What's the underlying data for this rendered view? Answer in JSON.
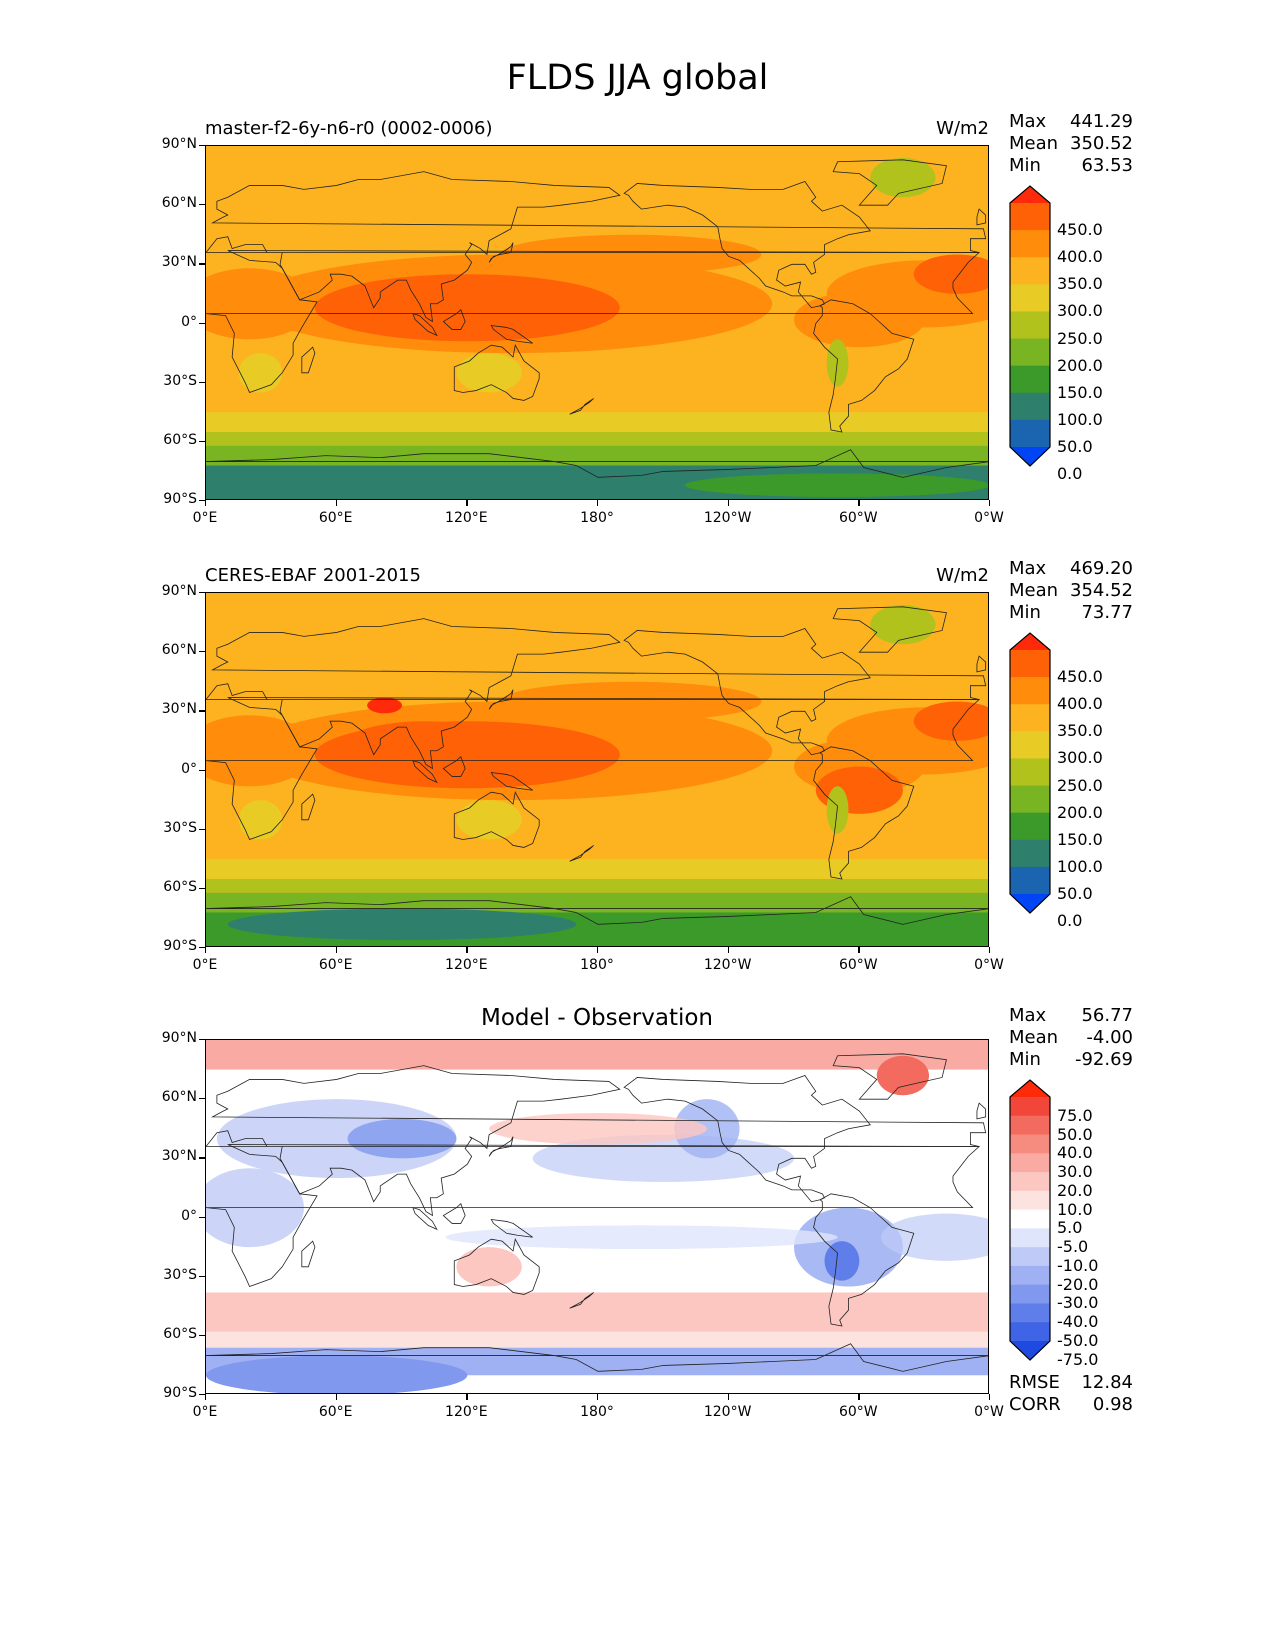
{
  "figure": {
    "title": "FLDS JJA global"
  },
  "axes": {
    "lat_ticks": [
      "90°N",
      "60°N",
      "30°N",
      "0°",
      "30°S",
      "60°S",
      "90°S"
    ],
    "lon_ticks": [
      "0°E",
      "60°E",
      "120°E",
      "180°",
      "120°W",
      "60°W",
      "0°W"
    ]
  },
  "panels": [
    {
      "id": "model",
      "label": "master-f2-6y-n6-r0 (0002-0006)",
      "units": "W/m2",
      "stats": {
        "max_label": "Max",
        "max": "441.29",
        "mean_label": "Mean",
        "mean": "350.52",
        "min_label": "Min",
        "min": "63.53"
      },
      "colorbar": {
        "labels": [
          "450.0",
          "400.0",
          "350.0",
          "300.0",
          "250.0",
          "200.0",
          "150.0",
          "100.0",
          "50.0",
          "0.0"
        ],
        "colors": [
          "#ff2a0a",
          "#ff6206",
          "#ff8c0b",
          "#fcb31f",
          "#e8cc25",
          "#b2c21d",
          "#79b422",
          "#3c9a2a",
          "#2e7f6c",
          "#1a64b0",
          "#0045f5"
        ]
      }
    },
    {
      "id": "obs",
      "label": "CERES-EBAF 2001-2015",
      "units": "W/m2",
      "stats": {
        "max_label": "Max",
        "max": "469.20",
        "mean_label": "Mean",
        "mean": "354.52",
        "min_label": "Min",
        "min": "73.77"
      },
      "colorbar": {
        "labels": [
          "450.0",
          "400.0",
          "350.0",
          "300.0",
          "250.0",
          "200.0",
          "150.0",
          "100.0",
          "50.0",
          "0.0"
        ],
        "colors": [
          "#ff2a0a",
          "#ff6206",
          "#ff8c0b",
          "#fcb31f",
          "#e8cc25",
          "#b2c21d",
          "#79b422",
          "#3c9a2a",
          "#2e7f6c",
          "#1a64b0",
          "#0045f5"
        ]
      }
    },
    {
      "id": "diff",
      "label": "Model - Observation",
      "stats": {
        "max_label": "Max",
        "max": "56.77",
        "mean_label": "Mean",
        "mean": "-4.00",
        "min_label": "Min",
        "min": "-92.69"
      },
      "colorbar": {
        "labels": [
          "75.0",
          "50.0",
          "40.0",
          "30.0",
          "20.0",
          "10.0",
          "5.0",
          "-5.0",
          "-10.0",
          "-20.0",
          "-30.0",
          "-40.0",
          "-50.0",
          "-75.0"
        ],
        "colors": [
          "#ff2a0a",
          "#f2463a",
          "#f36b5f",
          "#f68b80",
          "#f9aaa2",
          "#fcc7c1",
          "#fde3e0",
          "#ffffff",
          "#dfe5fb",
          "#bfcbf6",
          "#9fb1f2",
          "#8098ee",
          "#5f7eea",
          "#3f64e6",
          "#1f4ae2"
        ]
      },
      "metrics": {
        "rmse_label": "RMSE",
        "rmse": "12.84",
        "corr_label": "CORR",
        "corr": "0.98"
      }
    }
  ]
}
